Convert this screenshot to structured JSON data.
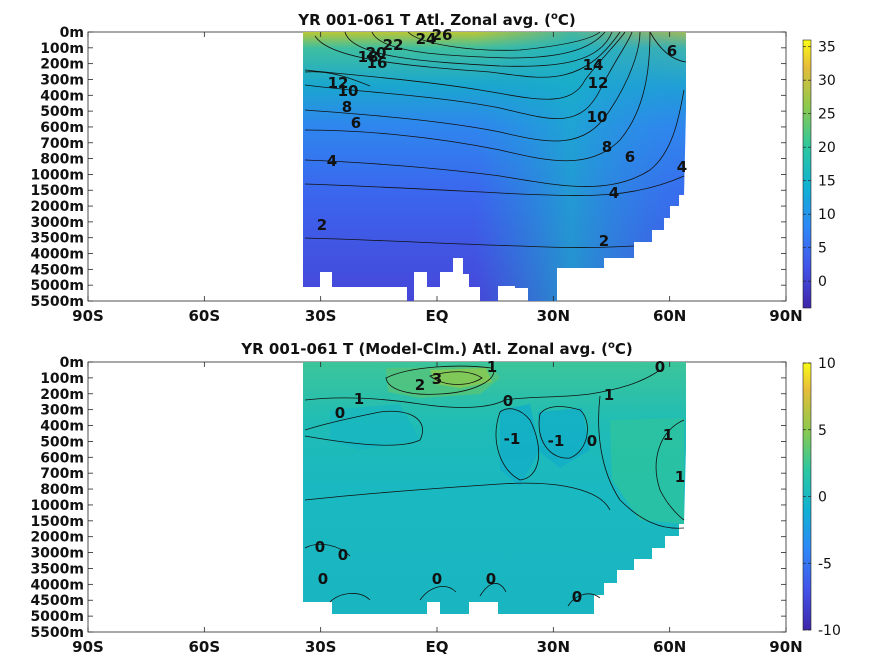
{
  "chart_data": [
    {
      "type": "heatmap",
      "title": "YR 001-061 T Atl. Zonal avg. (",
      "title_unit": "C)",
      "title_sup": "o",
      "x_ticks": [
        "90S",
        "60S",
        "30S",
        "EQ",
        "30N",
        "60N",
        "90N"
      ],
      "x_values": [
        -90,
        -60,
        -30,
        0,
        30,
        60,
        90
      ],
      "depth_ticks": [
        "0m",
        "100m",
        "200m",
        "300m",
        "400m",
        "500m",
        "600m",
        "700m",
        "800m",
        "1000m",
        "1500m",
        "2000m",
        "3000m",
        "3500m",
        "4000m",
        "4500m",
        "5000m",
        "5500m"
      ],
      "xlim": [
        -90,
        90
      ],
      "colorbar": {
        "ticks": [
          "35",
          "30",
          "25",
          "20",
          "15",
          "10",
          "5",
          "0"
        ],
        "tick_values": [
          35,
          30,
          25,
          20,
          15,
          10,
          5,
          0
        ],
        "range": [
          -4,
          36
        ]
      },
      "contour_labels": [
        "26",
        "24",
        "22",
        "20",
        "18",
        "16",
        "14",
        "12",
        "12",
        "10",
        "10",
        "8",
        "8",
        "6",
        "6",
        "6",
        "4",
        "4",
        "4",
        "2",
        "2"
      ]
    },
    {
      "type": "heatmap",
      "title": "YR 001-061 T (Model-Clm.) Atl. Zonal avg. (",
      "title_unit": "C)",
      "title_sup": "o",
      "x_ticks": [
        "90S",
        "60S",
        "30S",
        "EQ",
        "30N",
        "60N",
        "90N"
      ],
      "x_values": [
        -90,
        -60,
        -30,
        0,
        30,
        60,
        90
      ],
      "depth_ticks": [
        "0m",
        "100m",
        "200m",
        "300m",
        "400m",
        "500m",
        "600m",
        "700m",
        "800m",
        "1000m",
        "1500m",
        "2000m",
        "3000m",
        "3500m",
        "4000m",
        "4500m",
        "5000m",
        "5500m"
      ],
      "xlim": [
        -90,
        90
      ],
      "colorbar": {
        "ticks": [
          "10",
          "5",
          "0",
          "-5",
          "-10"
        ],
        "tick_values": [
          10,
          5,
          0,
          -5,
          -10
        ],
        "range": [
          -10,
          10
        ]
      },
      "contour_labels": [
        "1",
        "3",
        "2",
        "0",
        "1",
        "0",
        "1",
        "0",
        "-1",
        "-1",
        "0",
        "1",
        "1",
        "0",
        "0",
        "0",
        "0",
        "0",
        "0"
      ]
    }
  ]
}
